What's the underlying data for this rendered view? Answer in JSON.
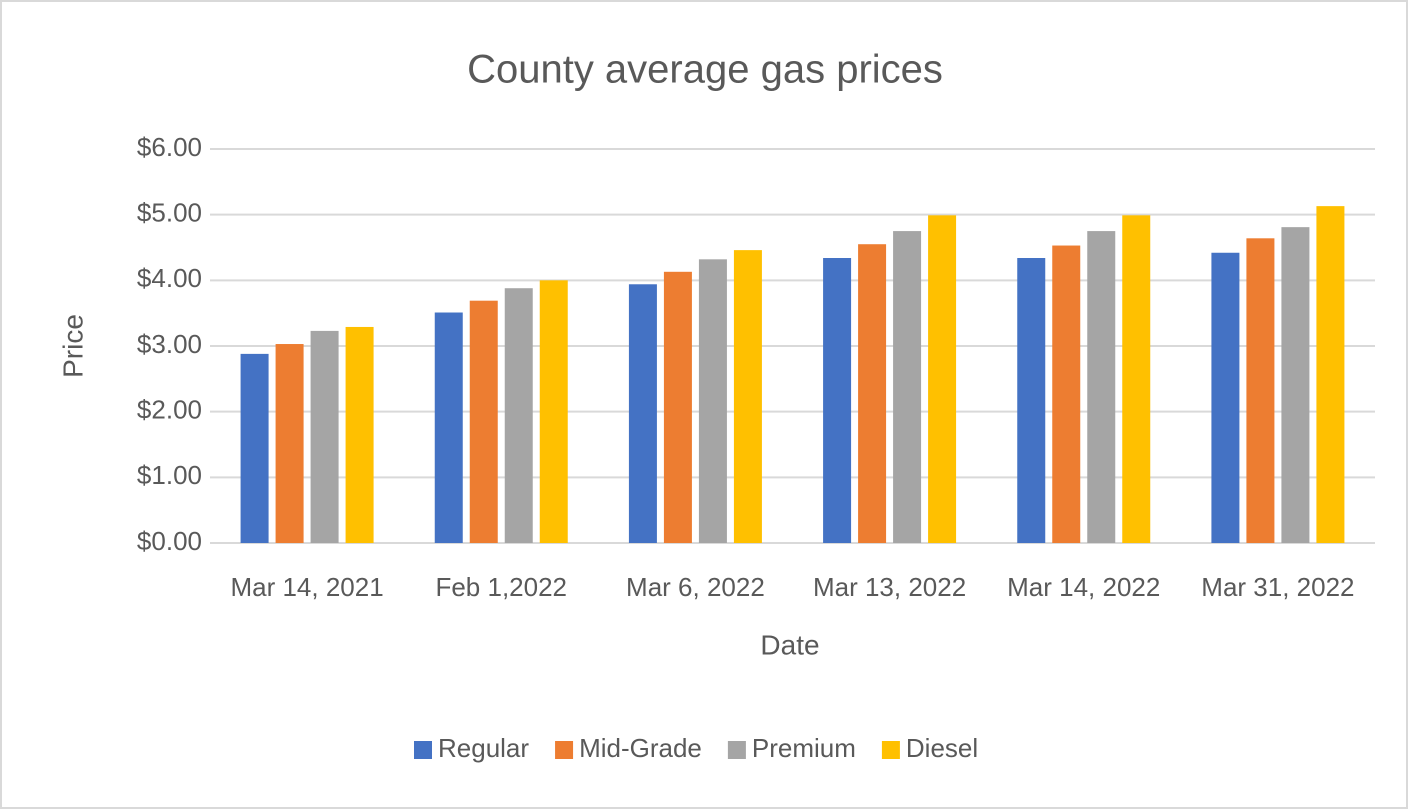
{
  "chart_data": {
    "type": "bar",
    "title": "County average gas prices",
    "x_label": "Date",
    "y_label": "Price",
    "categories": [
      "Mar 14, 2021",
      "Feb 1,2022",
      "Mar 6, 2022",
      "Mar 13, 2022",
      "Mar 14, 2022",
      "Mar 31, 2022"
    ],
    "series": [
      {
        "name": "Regular",
        "color": "#4472c4",
        "values": [
          2.88,
          3.51,
          3.94,
          4.34,
          4.34,
          4.42
        ]
      },
      {
        "name": "Mid-Grade",
        "color": "#ed7d31",
        "values": [
          3.03,
          3.69,
          4.13,
          4.55,
          4.53,
          4.64
        ]
      },
      {
        "name": "Premium",
        "color": "#a5a5a5",
        "values": [
          3.23,
          3.88,
          4.32,
          4.75,
          4.75,
          4.81
        ]
      },
      {
        "name": "Diesel",
        "color": "#ffc000",
        "values": [
          3.29,
          4.0,
          4.46,
          4.99,
          4.99,
          5.13
        ]
      }
    ],
    "ylim": [
      0,
      6
    ],
    "yticks": [
      {
        "value": 0,
        "label": "$0.00"
      },
      {
        "value": 1,
        "label": "$1.00"
      },
      {
        "value": 2,
        "label": "$2.00"
      },
      {
        "value": 3,
        "label": "$3.00"
      },
      {
        "value": 4,
        "label": "$4.00"
      },
      {
        "value": 5,
        "label": "$5.00"
      },
      {
        "value": 6,
        "label": "$6.00"
      }
    ],
    "grid": true,
    "legend": "bottom"
  }
}
